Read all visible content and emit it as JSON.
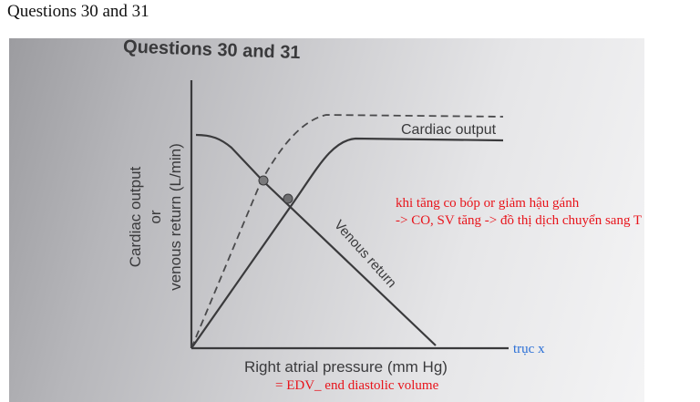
{
  "page": {
    "heading": "Questions 30 and 31"
  },
  "figure": {
    "printed_title": "Questions 30 and 31",
    "y_label_line1": "Cardiac output",
    "y_label_line2": "or",
    "y_label_line3": "venous return (L/min)",
    "x_label": "Right atrial pressure (mm Hg)",
    "curve_label_cardiac": "Cardiac output",
    "curve_label_venous": "Venous return"
  },
  "annotations": {
    "red_line1": "khi tăng co bóp or giảm hậu gánh",
    "red_line2": "-> CO, SV tăng -> đồ thị dịch chuyển sang T",
    "axis_note": "trục x",
    "edv_note": "= EDV_ end diastolic volume"
  },
  "colors": {
    "ink": "#3a3a3c",
    "annotation_red": "#e8141b",
    "annotation_blue": "#2a6fd6"
  }
}
